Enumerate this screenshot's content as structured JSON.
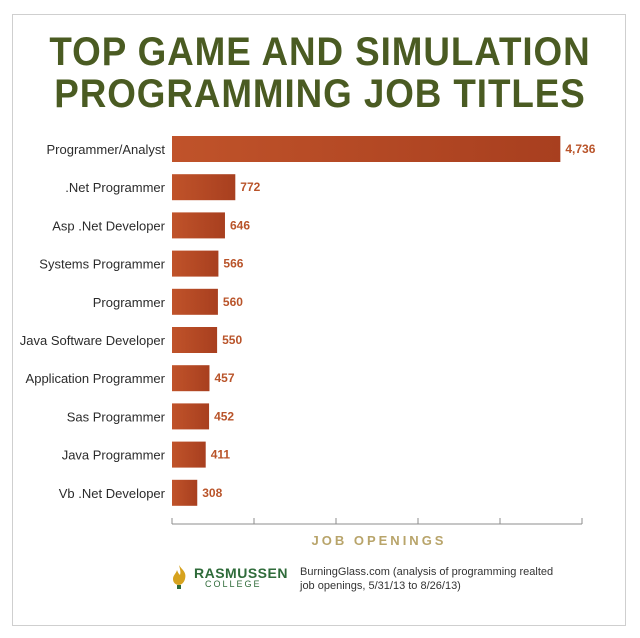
{
  "title_line1": "TOP GAME AND SIMULATION",
  "title_line2": "PROGRAMMING JOB TITLES",
  "colors": {
    "title": "#4a5b22",
    "bar": "#c0532a",
    "bar_dark": "#a83f1f",
    "value_label": "#b9542a",
    "axis_label": "#b8a46a",
    "brand": "#2f6b3a",
    "brand_icon": "#d6a21e"
  },
  "footer": {
    "brand_name": "RASMUSSEN",
    "brand_sub": "COLLEGE",
    "brand_icon": "flame-icon",
    "source": "BurningGlass.com (analysis of programming realted job openings, 5/31/13 to 8/26/13)"
  },
  "chart_data": {
    "type": "bar",
    "orientation": "horizontal",
    "title": "TOP GAME AND SIMULATION PROGRAMMING JOB TITLES",
    "xlabel": "JOB OPENINGS",
    "ylabel": "",
    "xlim": [
      0,
      5000
    ],
    "grid": false,
    "categories": [
      "Programmer/Analyst",
      ".Net Programmer",
      "Asp .Net Developer",
      "Systems Programmer",
      "Programmer",
      "Java Software Developer",
      "Application Programmer",
      "Sas Programmer",
      "Java Programmer",
      "Vb .Net Developer"
    ],
    "values": [
      4736,
      772,
      646,
      566,
      560,
      550,
      457,
      452,
      411,
      308
    ],
    "value_labels": [
      "4,736",
      "772",
      "646",
      "566",
      "560",
      "550",
      "457",
      "452",
      "411",
      "308"
    ]
  }
}
